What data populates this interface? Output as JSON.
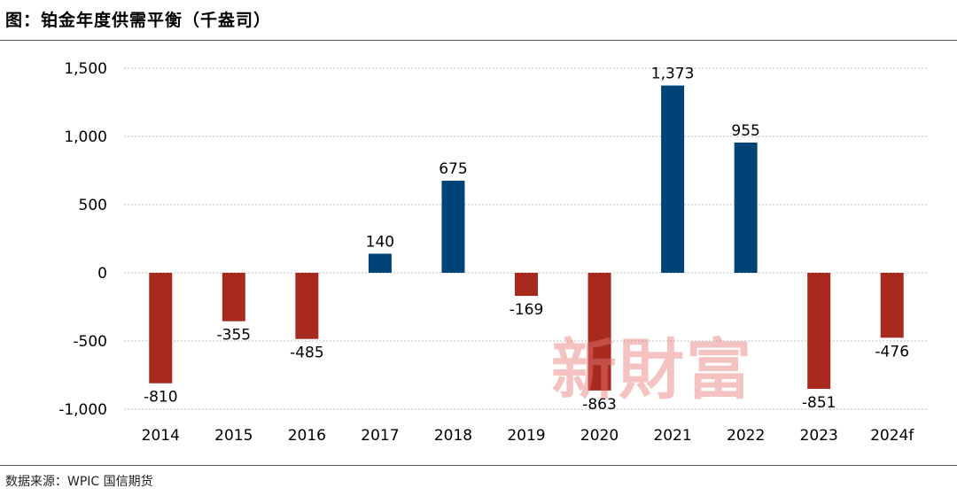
{
  "title": "图：铂金年度供需平衡（千盎司）",
  "source": "数据来源：WPIC  国信期货",
  "watermark": "新財富",
  "colors": {
    "positive": "#004477",
    "negative": "#a82a1f",
    "grid": "#bdbdbd"
  },
  "chart_data": {
    "type": "bar",
    "title": "铂金年度供需平衡（千盎司）",
    "xlabel": "",
    "ylabel": "",
    "ylim": [
      -1000,
      1500
    ],
    "yticks": [
      -1000,
      -500,
      0,
      500,
      1000,
      1500
    ],
    "ytick_labels": [
      "-1,000",
      "-500",
      "0",
      "500",
      "1,000",
      "1,500"
    ],
    "categories": [
      "2014",
      "2015",
      "2016",
      "2017",
      "2018",
      "2019",
      "2020",
      "2021",
      "2022",
      "2023",
      "2024f"
    ],
    "values": [
      -810,
      -355,
      -485,
      140,
      675,
      -169,
      -863,
      1373,
      955,
      -851,
      -476
    ],
    "value_labels": [
      "-810",
      "-355",
      "-485",
      "140",
      "675",
      "-169",
      "-863",
      "1,373",
      "955",
      "-851",
      "-476"
    ],
    "grid": true
  }
}
